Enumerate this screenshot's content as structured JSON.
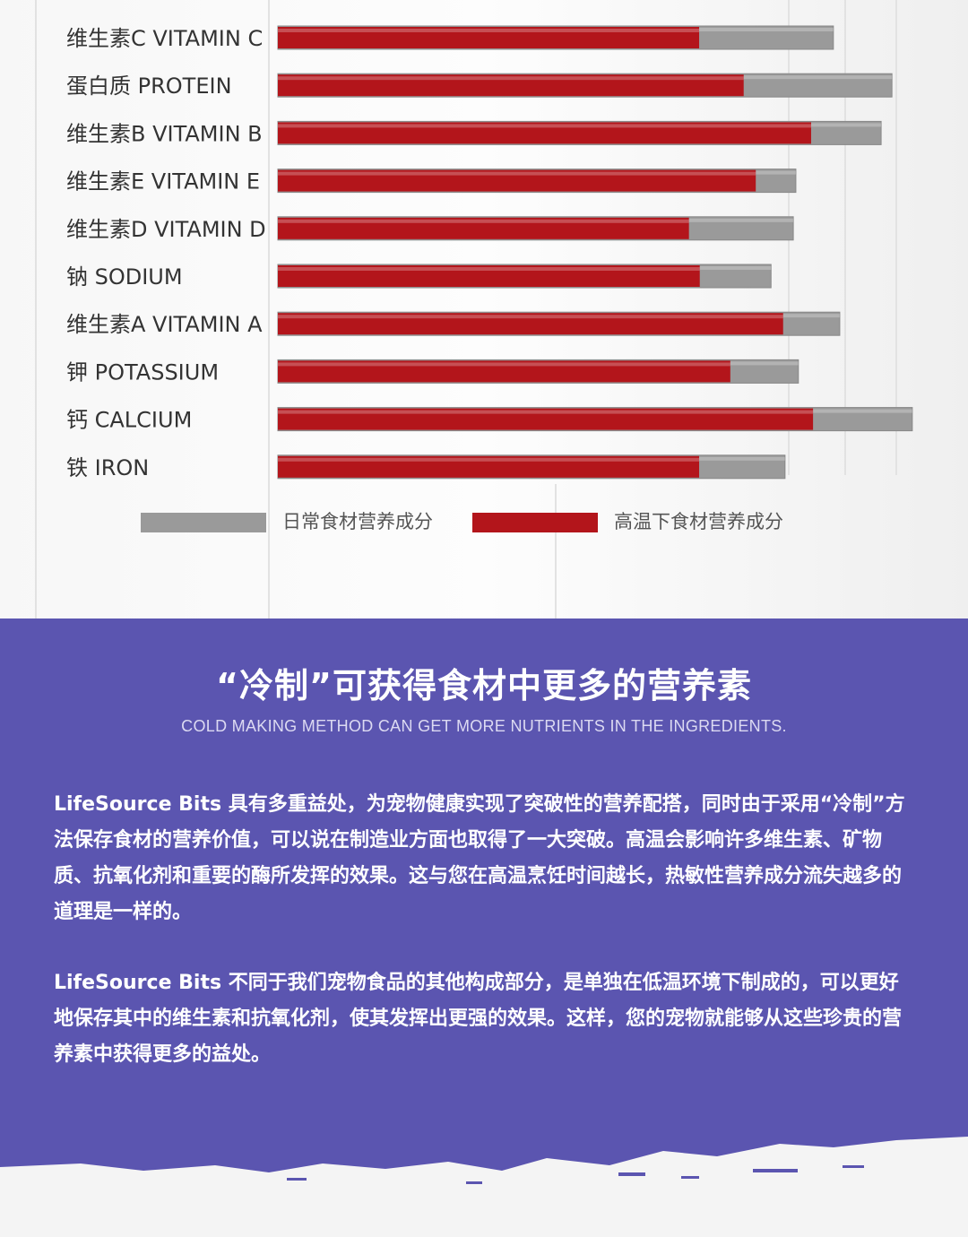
{
  "chart_data": {
    "type": "bar",
    "orientation": "horizontal",
    "categories": [
      "维生素C VITAMIN C",
      "蛋白质 PROTEIN",
      "维生素B VITAMIN B",
      "维生素E VITAMIN E",
      "维生素D VITAMIN D",
      "钠 SODIUM",
      "维生素A VITAMIN A",
      "钾 POTASSIUM",
      "钙 CALCIUM",
      "铁 IRON"
    ],
    "series": [
      {
        "name": "日常食材营养成分",
        "color": "#9a9a9a",
        "values": [
          87.3,
          96.5,
          94.8,
          81.4,
          81,
          77.5,
          88.3,
          81.8,
          99.7,
          79.7
        ]
      },
      {
        "name": "高温下食材营养成分",
        "color": "#b3151b",
        "values": [
          66.2,
          73.2,
          83.8,
          75.1,
          64.6,
          66.3,
          79.4,
          71.1,
          84.1,
          66.2
        ]
      }
    ],
    "xlim": [
      0,
      100
    ],
    "legend": "bottom"
  },
  "section": {
    "heading": "“冷制”可获得食材中更多的营养素",
    "subheading": "COLD MAKING METHOD CAN GET MORE NUTRIENTS IN THE INGREDIENTS.",
    "paragraphs": [
      "LifeSource Bits 具有多重益处，为宠物健康实现了突破性的营养配搭，同时由于采用“冷制”方法保存食材的营养价值，可以说在制造业方面也取得了一大突破。高温会影响许多维生素、矿物质、抗氧化剂和重要的酶所发挥的效果。这与您在高温烹饪时间越长，热敏性营养成分流失越多的道理是一样的。",
      "LifeSource Bits 不同于我们宠物食品的其他构成部分，是单独在低温环境下制成的，可以更好地保存其中的维生素和抗氧化剂，使其发挥出更强的效果。这样，您的宠物就能够从这些珍贵的营养素中获得更多的益处。"
    ]
  }
}
